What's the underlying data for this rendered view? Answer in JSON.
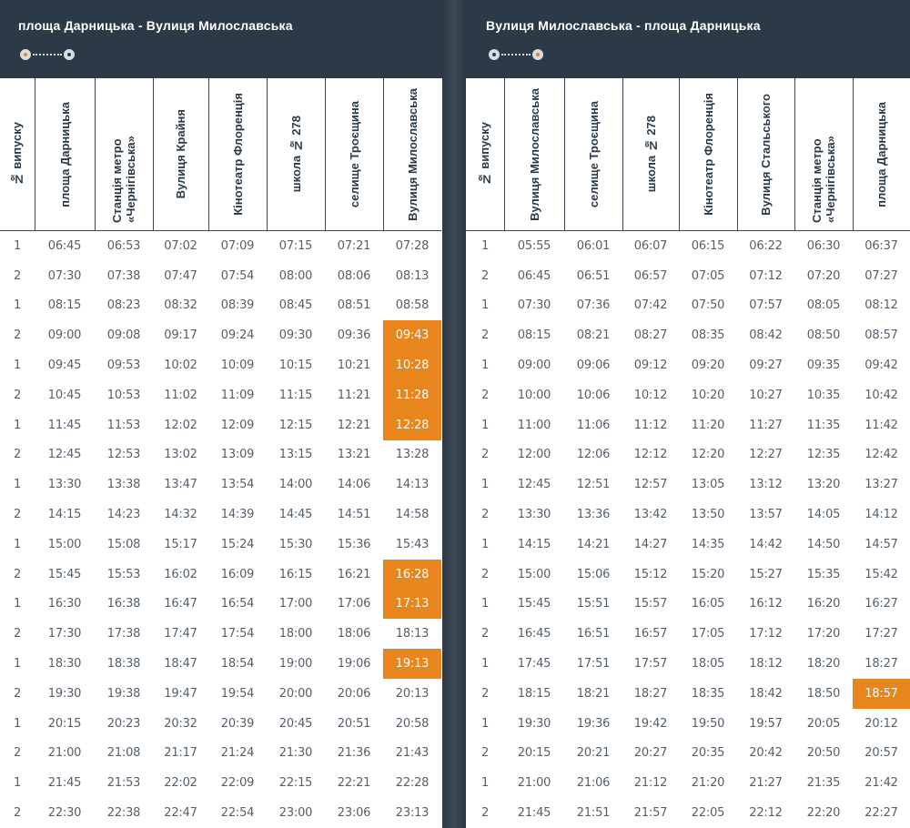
{
  "left": {
    "title": "площа Дарницька - Вулиця Милославська",
    "columns": [
      "№ випуску",
      "площа Дарницька",
      "Станція метро «Чернігівська»",
      "Вулиця Крайня",
      "Кінотеатр Флоренція",
      "школа № 278",
      "селище Троєщина",
      "Вулиця Милославська"
    ],
    "rows": [
      [
        "1",
        "06:45",
        "06:53",
        "07:02",
        "07:09",
        "07:15",
        "07:21",
        "07:28"
      ],
      [
        "2",
        "07:30",
        "07:38",
        "07:47",
        "07:54",
        "08:00",
        "08:06",
        "08:13"
      ],
      [
        "1",
        "08:15",
        "08:23",
        "08:32",
        "08:39",
        "08:45",
        "08:51",
        "08:58"
      ],
      [
        "2",
        "09:00",
        "09:08",
        "09:17",
        "09:24",
        "09:30",
        "09:36",
        "09:43"
      ],
      [
        "1",
        "09:45",
        "09:53",
        "10:02",
        "10:09",
        "10:15",
        "10:21",
        "10:28"
      ],
      [
        "2",
        "10:45",
        "10:53",
        "11:02",
        "11:09",
        "11:15",
        "11:21",
        "11:28"
      ],
      [
        "1",
        "11:45",
        "11:53",
        "12:02",
        "12:09",
        "12:15",
        "12:21",
        "12:28"
      ],
      [
        "2",
        "12:45",
        "12:53",
        "13:02",
        "13:09",
        "13:15",
        "13:21",
        "13:28"
      ],
      [
        "1",
        "13:30",
        "13:38",
        "13:47",
        "13:54",
        "14:00",
        "14:06",
        "14:13"
      ],
      [
        "2",
        "14:15",
        "14:23",
        "14:32",
        "14:39",
        "14:45",
        "14:51",
        "14:58"
      ],
      [
        "1",
        "15:00",
        "15:08",
        "15:17",
        "15:24",
        "15:30",
        "15:36",
        "15:43"
      ],
      [
        "2",
        "15:45",
        "15:53",
        "16:02",
        "16:09",
        "16:15",
        "16:21",
        "16:28"
      ],
      [
        "1",
        "16:30",
        "16:38",
        "16:47",
        "16:54",
        "17:00",
        "17:06",
        "17:13"
      ],
      [
        "2",
        "17:30",
        "17:38",
        "17:47",
        "17:54",
        "18:00",
        "18:06",
        "18:13"
      ],
      [
        "1",
        "18:30",
        "18:38",
        "18:47",
        "18:54",
        "19:00",
        "19:06",
        "19:13"
      ],
      [
        "2",
        "19:30",
        "19:38",
        "19:47",
        "19:54",
        "20:00",
        "20:06",
        "20:13"
      ],
      [
        "1",
        "20:15",
        "20:23",
        "20:32",
        "20:39",
        "20:45",
        "20:51",
        "20:58"
      ],
      [
        "2",
        "21:00",
        "21:08",
        "21:17",
        "21:24",
        "21:30",
        "21:36",
        "21:43"
      ],
      [
        "1",
        "21:45",
        "21:53",
        "22:02",
        "22:09",
        "22:15",
        "22:21",
        "22:28"
      ],
      [
        "2",
        "22:30",
        "22:38",
        "22:47",
        "22:54",
        "23:00",
        "23:06",
        "23:13"
      ]
    ],
    "highlighted_rows": [
      3,
      4,
      5,
      6,
      11,
      12,
      14
    ],
    "highlighted_column": 7
  },
  "right": {
    "title": "Вулиця Милославська - площа Дарницька",
    "columns": [
      "№ випуску",
      "Вулиця Милославська",
      "селище Троєщина",
      "школа № 278",
      "Кінотеатр Флоренція",
      "Вулиця Стальського",
      "Станція метро «Чернігівська»",
      "площа Дарницька"
    ],
    "rows": [
      [
        "1",
        "05:55",
        "06:01",
        "06:07",
        "06:15",
        "06:22",
        "06:30",
        "06:37"
      ],
      [
        "2",
        "06:45",
        "06:51",
        "06:57",
        "07:05",
        "07:12",
        "07:20",
        "07:27"
      ],
      [
        "1",
        "07:30",
        "07:36",
        "07:42",
        "07:50",
        "07:57",
        "08:05",
        "08:12"
      ],
      [
        "2",
        "08:15",
        "08:21",
        "08:27",
        "08:35",
        "08:42",
        "08:50",
        "08:57"
      ],
      [
        "1",
        "09:00",
        "09:06",
        "09:12",
        "09:20",
        "09:27",
        "09:35",
        "09:42"
      ],
      [
        "2",
        "10:00",
        "10:06",
        "10:12",
        "10:20",
        "10:27",
        "10:35",
        "10:42"
      ],
      [
        "1",
        "11:00",
        "11:06",
        "11:12",
        "11:20",
        "11:27",
        "11:35",
        "11:42"
      ],
      [
        "2",
        "12:00",
        "12:06",
        "12:12",
        "12:20",
        "12:27",
        "12:35",
        "12:42"
      ],
      [
        "1",
        "12:45",
        "12:51",
        "12:57",
        "13:05",
        "13:12",
        "13:20",
        "13:27"
      ],
      [
        "2",
        "13:30",
        "13:36",
        "13:42",
        "13:50",
        "13:57",
        "14:05",
        "14:12"
      ],
      [
        "1",
        "14:15",
        "14:21",
        "14:27",
        "14:35",
        "14:42",
        "14:50",
        "14:57"
      ],
      [
        "2",
        "15:00",
        "15:06",
        "15:12",
        "15:20",
        "15:27",
        "15:35",
        "15:42"
      ],
      [
        "1",
        "15:45",
        "15:51",
        "15:57",
        "16:05",
        "16:12",
        "16:20",
        "16:27"
      ],
      [
        "2",
        "16:45",
        "16:51",
        "16:57",
        "17:05",
        "17:12",
        "17:20",
        "17:27"
      ],
      [
        "1",
        "17:45",
        "17:51",
        "17:57",
        "18:05",
        "18:12",
        "18:20",
        "18:27"
      ],
      [
        "2",
        "18:15",
        "18:21",
        "18:27",
        "18:35",
        "18:42",
        "18:50",
        "18:57"
      ],
      [
        "1",
        "19:30",
        "19:36",
        "19:42",
        "19:50",
        "19:57",
        "20:05",
        "20:12"
      ],
      [
        "2",
        "20:15",
        "20:21",
        "20:27",
        "20:35",
        "20:42",
        "20:50",
        "20:57"
      ],
      [
        "1",
        "21:00",
        "21:06",
        "21:12",
        "21:20",
        "21:27",
        "21:35",
        "21:42"
      ],
      [
        "2",
        "21:45",
        "21:51",
        "21:57",
        "22:05",
        "22:12",
        "22:20",
        "22:27"
      ]
    ],
    "highlighted_rows": [
      15
    ],
    "highlighted_column": 7
  },
  "colors": {
    "accent": "#e8861d",
    "header_bg": "#2c3a48",
    "text": "#55606b"
  }
}
